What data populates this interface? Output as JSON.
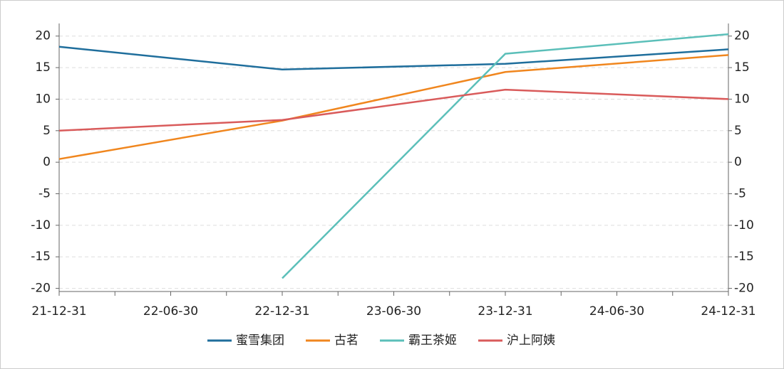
{
  "chart_data": {
    "type": "line",
    "categories": [
      "21-12-31",
      "22-06-30",
      "22-12-31",
      "23-06-30",
      "23-12-31",
      "24-06-30",
      "24-12-31"
    ],
    "series": [
      {
        "name": "蜜雪集团",
        "color": "#1f6e9c",
        "values": [
          18.3,
          null,
          14.7,
          null,
          15.6,
          null,
          17.9
        ]
      },
      {
        "name": "古茗",
        "color": "#f0861e",
        "values": [
          0.5,
          null,
          6.6,
          null,
          14.3,
          null,
          17.0
        ]
      },
      {
        "name": "霸王茶姬",
        "color": "#5bbfb9",
        "values": [
          null,
          null,
          -18.4,
          null,
          17.2,
          null,
          20.3
        ]
      },
      {
        "name": "沪上阿姨",
        "color": "#d95b5b",
        "values": [
          5.0,
          null,
          6.7,
          null,
          11.5,
          null,
          10.0
        ]
      }
    ],
    "connect_nulls": true,
    "ylim": [
      -20.5,
      22
    ],
    "yticks": [
      -20,
      -15,
      -10,
      -5,
      0,
      5,
      10,
      15,
      20
    ],
    "y2lim": [
      -20.5,
      22
    ],
    "y2ticks": [
      -20,
      -15,
      -10,
      -5,
      0,
      5,
      10,
      15,
      20
    ],
    "grid": true,
    "legend": "bottom"
  }
}
